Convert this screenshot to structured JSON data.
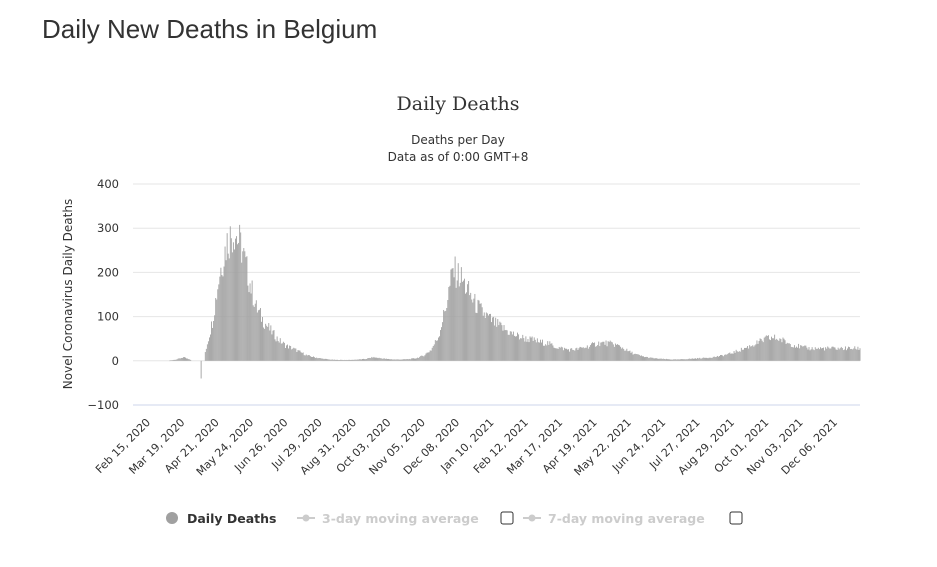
{
  "page": {
    "heading": "Daily New Deaths in Belgium"
  },
  "colors": {
    "bar": "#a0a0a0",
    "grid": "#e6e6e6",
    "text": "#333333",
    "legend_inactive": "#cccccc"
  },
  "legend": {
    "items": [
      {
        "label": "Daily Deaths",
        "active": true,
        "marker": "circle"
      },
      {
        "label": "3-day moving average",
        "active": false,
        "marker": "line-dot"
      },
      {
        "label": "7-day moving average",
        "active": false,
        "marker": "line-dot"
      }
    ],
    "checkboxes": [
      {
        "checked": false
      },
      {
        "checked": false
      }
    ]
  },
  "chart_data": {
    "type": "bar",
    "title": "Daily Deaths",
    "subtitle_lines": [
      "Deaths per Day",
      "Data as of 0:00 GMT+8"
    ],
    "ylabel": "Novel Coronavirus Daily Deaths",
    "xlabel": "",
    "ylim": [
      -100,
      400
    ],
    "yticks": [
      -100,
      0,
      100,
      200,
      300,
      400
    ],
    "grid": true,
    "x_start": "Feb 15, 2020",
    "x_end": "Dec 31, 2021",
    "xticks": [
      "Feb 15, 2020",
      "Mar 19, 2020",
      "Apr 21, 2020",
      "May 24, 2020",
      "Jun 26, 2020",
      "Jul 29, 2020",
      "Aug 31, 2020",
      "Oct 03, 2020",
      "Nov 05, 2020",
      "Dec 08, 2020",
      "Jan 10, 2021",
      "Feb 12, 2021",
      "Mar 17, 2021",
      "Apr 19, 2021",
      "May 22, 2021",
      "Jun 24, 2021",
      "Jul 27, 2021",
      "Aug 29, 2021",
      "Oct 01, 2021",
      "Nov 03, 2021",
      "Dec 06, 2021"
    ],
    "series": [
      {
        "name": "Daily Deaths",
        "weekly_values": [
          0,
          0,
          0,
          0,
          3,
          8,
          2,
          -40,
          20,
          90,
          200,
          270,
          295,
          255,
          185,
          120,
          90,
          68,
          48,
          35,
          28,
          20,
          12,
          8,
          5,
          3,
          2,
          2,
          2,
          3,
          4,
          8,
          6,
          4,
          3,
          3,
          4,
          6,
          12,
          25,
          55,
          120,
          205,
          190,
          160,
          130,
          110,
          95,
          82,
          72,
          62,
          55,
          50,
          47,
          42,
          40,
          32,
          28,
          25,
          26,
          30,
          35,
          40,
          40,
          38,
          32,
          22,
          15,
          10,
          7,
          5,
          4,
          3,
          3,
          4,
          5,
          6,
          7,
          9,
          12,
          16,
          22,
          28,
          35,
          42,
          50,
          52,
          48,
          40,
          35,
          30,
          28
        ]
      }
    ]
  }
}
